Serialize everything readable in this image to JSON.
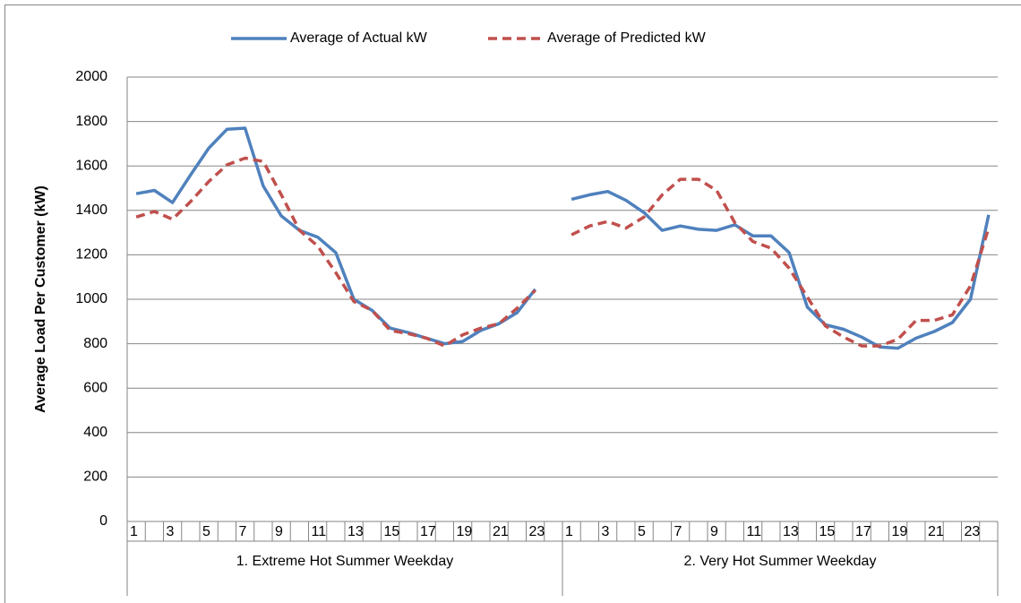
{
  "chart_data": {
    "type": "line",
    "y_label": "Average Load Per Customer  (kW)",
    "groups": [
      "1. Extreme Hot Summer Weekday",
      "2. Very Hot Summer Weekday"
    ],
    "categories": [
      "1",
      null,
      "3",
      null,
      "5",
      null,
      "7",
      null,
      "9",
      null,
      "11",
      null,
      "13",
      null,
      "15",
      null,
      "17",
      null,
      "19",
      null,
      "21",
      null,
      "23",
      null,
      "1",
      null,
      "3",
      null,
      "5",
      null,
      "7",
      null,
      "9",
      null,
      "11",
      null,
      "13",
      null,
      "15",
      null,
      "17",
      null,
      "19",
      null,
      "21",
      null,
      "23",
      null
    ],
    "series": [
      {
        "name": "Average of Actual kW",
        "color": "#4f81bd",
        "dash": false,
        "values": [
          1475,
          1490,
          1435,
          1560,
          1680,
          1765,
          1770,
          1510,
          1375,
          1310,
          1280,
          1210,
          1000,
          950,
          870,
          850,
          825,
          800,
          810,
          860,
          890,
          940,
          1045,
          null,
          1450,
          1470,
          1485,
          1445,
          1390,
          1310,
          1330,
          1315,
          1310,
          1335,
          1285,
          1285,
          1210,
          965,
          885,
          865,
          830,
          785,
          780,
          825,
          855,
          895,
          1000,
          1380
        ]
      },
      {
        "name": "Average of Predicted kW",
        "color": "#c0504d",
        "dash": true,
        "values": [
          1370,
          1395,
          1360,
          1440,
          1530,
          1605,
          1635,
          1620,
          1470,
          1310,
          1240,
          1120,
          990,
          950,
          860,
          845,
          825,
          790,
          840,
          870,
          890,
          960,
          1040,
          null,
          1290,
          1330,
          1350,
          1320,
          1370,
          1470,
          1540,
          1540,
          1490,
          1345,
          1260,
          1230,
          1140,
          1010,
          880,
          830,
          790,
          790,
          820,
          905,
          905,
          930,
          1060,
          1320
        ]
      }
    ],
    "ylim": [
      0,
      2000
    ],
    "yticks": [
      0,
      200,
      400,
      600,
      800,
      1000,
      1200,
      1400,
      1600,
      1800,
      2000
    ],
    "grid": true,
    "legend": "top"
  }
}
